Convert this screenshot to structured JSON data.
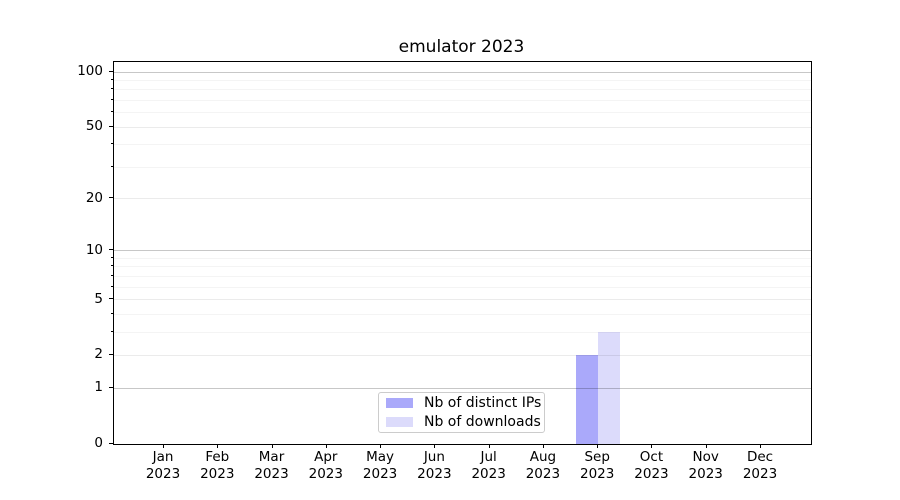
{
  "figure": {
    "title": "emulator 2023"
  },
  "chart_data": {
    "type": "bar",
    "title": "emulator 2023",
    "categories": [
      "Jan 2023",
      "Feb 2023",
      "Mar 2023",
      "Apr 2023",
      "May 2023",
      "Jun 2023",
      "Jul 2023",
      "Aug 2023",
      "Sep 2023",
      "Oct 2023",
      "Nov 2023",
      "Dec 2023"
    ],
    "series": [
      {
        "name": "Nb of distinct IPs",
        "color": "#aaa9fa",
        "values": [
          0,
          0,
          0,
          0,
          0,
          0,
          0,
          0,
          2,
          0,
          0,
          0
        ]
      },
      {
        "name": "Nb of downloads",
        "color": "#dcdbfb",
        "values": [
          0,
          0,
          0,
          0,
          0,
          0,
          0,
          0,
          3,
          0,
          0,
          0
        ]
      }
    ],
    "xlabel": "",
    "ylabel": "",
    "yscale": "log1p",
    "ylim": [
      0,
      113
    ],
    "y_ticks": [
      0,
      1,
      2,
      5,
      10,
      20,
      50,
      100
    ],
    "y_minor_ticks": [
      3,
      4,
      6,
      7,
      8,
      9,
      30,
      40,
      60,
      70,
      80,
      90
    ],
    "grid": "horizontal",
    "legend_position": "lower-center-inside"
  },
  "colors": {
    "background": "#ffffff",
    "axis": "#000000",
    "grid_decade": "rgba(0,0,0,0.22)",
    "grid_major": "rgba(0,0,0,0.08)",
    "grid_minor": "rgba(0,0,0,0.045)",
    "legend_border": "#cccccc"
  }
}
